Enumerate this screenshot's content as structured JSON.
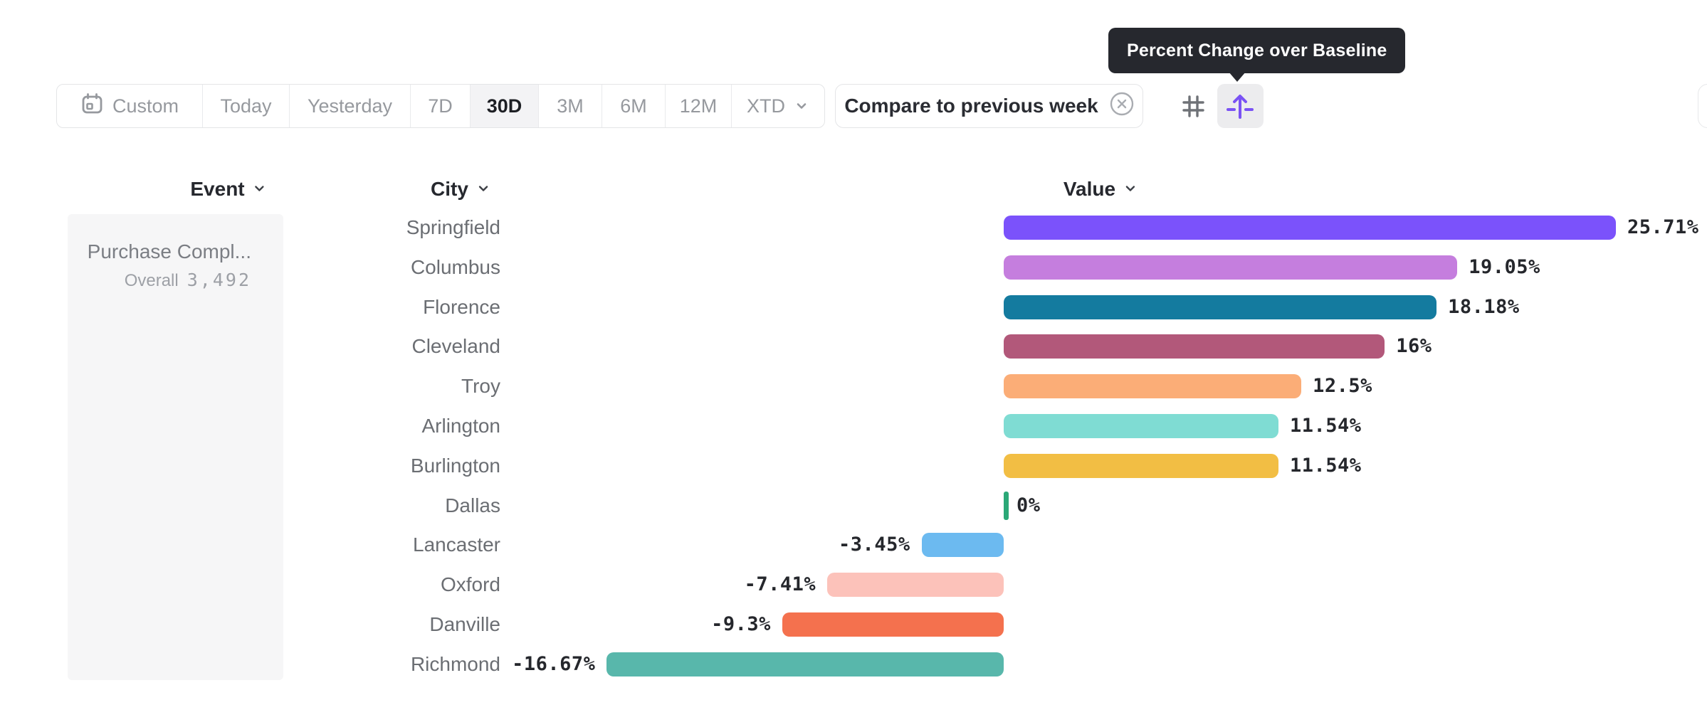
{
  "tooltip": {
    "text": "Percent Change over Baseline"
  },
  "toolbar": {
    "date_ranges": [
      {
        "label": "Custom",
        "icon": "calendar-icon",
        "selected": false
      },
      {
        "label": "Today",
        "selected": false
      },
      {
        "label": "Yesterday",
        "selected": false
      },
      {
        "label": "7D",
        "selected": false
      },
      {
        "label": "30D",
        "selected": true
      },
      {
        "label": "3M",
        "selected": false
      },
      {
        "label": "6M",
        "selected": false
      },
      {
        "label": "12M",
        "selected": false
      },
      {
        "label": "XTD",
        "icon": "chevron-down-icon",
        "selected": false
      }
    ],
    "compare": {
      "label": "Compare to previous week",
      "icon": "circle-x-icon"
    },
    "view_toggle": [
      {
        "icon": "grid-icon",
        "selected": false
      },
      {
        "icon": "baseline-arrow-icon",
        "selected": true
      }
    ]
  },
  "columns": {
    "event": "Event",
    "city": "City",
    "value": "Value"
  },
  "event_card": {
    "title": "Purchase Compl...",
    "overall_label": "Overall",
    "overall_value": "3,492"
  },
  "chart_data": {
    "type": "bar",
    "orientation": "horizontal",
    "unit": "%",
    "baseline": 0,
    "categories": [
      "Springfield",
      "Columbus",
      "Florence",
      "Cleveland",
      "Troy",
      "Arlington",
      "Burlington",
      "Dallas",
      "Lancaster",
      "Oxford",
      "Danville",
      "Richmond"
    ],
    "values": [
      25.71,
      19.05,
      18.18,
      16,
      12.5,
      11.54,
      11.54,
      0,
      -3.45,
      -7.41,
      -9.3,
      -16.67
    ],
    "labels": [
      "25.71%",
      "19.05%",
      "18.18%",
      "16%",
      "12.5%",
      "11.54%",
      "11.54%",
      "0%",
      "-3.45%",
      "-7.41%",
      "-9.3%",
      "-16.67%"
    ],
    "colors": [
      "#7B52FB",
      "#C57EDE",
      "#147B9F",
      "#B2587A",
      "#FBAD77",
      "#7FDCD3",
      "#F2BE44",
      "#2BA877",
      "#6CBAF0",
      "#FCC2BA",
      "#F4714E",
      "#58B7AB"
    ]
  },
  "ui_colors": {
    "accent_purple": "#7A52F4",
    "tooltip_bg": "#26282e",
    "selected_segment_bg": "#f3f3f5",
    "zero_tick_green": "#2BA877"
  }
}
